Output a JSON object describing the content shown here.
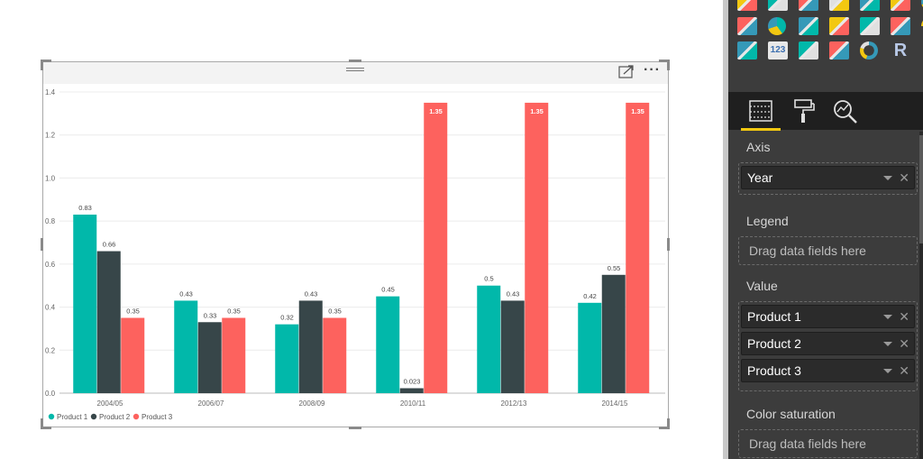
{
  "chart_data": {
    "type": "bar",
    "categories": [
      "2004/05",
      "2006/07",
      "2008/09",
      "2010/11",
      "2012/13",
      "2014/15"
    ],
    "series": [
      {
        "name": "Product 1",
        "values": [
          0.83,
          0.43,
          0.32,
          0.45,
          0.5,
          0.42
        ],
        "labels": [
          "0.83",
          "0.43",
          "0.32",
          "0.45",
          "0.5",
          "0.42"
        ],
        "color": "#01b8aa"
      },
      {
        "name": "Product 2",
        "values": [
          0.66,
          0.33,
          0.43,
          0.023,
          0.43,
          0.55
        ],
        "labels": [
          "0.66",
          "0.33",
          "0.43",
          "0.023",
          "0.43",
          "0.55"
        ],
        "color": "#374649"
      },
      {
        "name": "Product 3",
        "values": [
          0.35,
          0.35,
          0.35,
          1.35,
          1.35,
          1.35
        ],
        "labels": [
          "0.35",
          "0.35",
          "0.35",
          "1.35",
          "1.35",
          "1.35"
        ],
        "color": "#fd625e"
      }
    ],
    "yticks": [
      "0.0",
      "0.2",
      "0.4",
      "0.6",
      "0.8",
      "1.0",
      "1.2",
      "1.4"
    ],
    "ylim": [
      0,
      1.4
    ],
    "grid": true,
    "legend": "bottom-left",
    "title": "",
    "xlabel": "",
    "ylabel": ""
  },
  "visual": {
    "more_label": "···"
  },
  "pane": {
    "viz_icons": [
      "line-chart-icon",
      "area-chart-icon",
      "stacked-area-icon",
      "ribbon-chart-icon",
      "waterfall-icon",
      "scatter-icon",
      "pie-chart-icon",
      "treemap-icon",
      "map-globe-icon",
      "table-icon",
      "matrix-icon",
      "filled-map-icon",
      "funnel-icon",
      "gauge-icon",
      "multi-row-card-icon",
      "card-icon",
      "kpi-icon",
      "slicer-icon",
      "donut-icon",
      "r-visual-icon",
      "more-visuals-icon"
    ],
    "viz_text": {
      "card": "123",
      "r": "R",
      "more": "···"
    },
    "tab_colors": {
      "accent": "#f2c811"
    },
    "sections": {
      "axis": {
        "label": "Axis",
        "fields": [
          "Year"
        ]
      },
      "legend": {
        "label": "Legend",
        "placeholder": "Drag data fields here"
      },
      "value": {
        "label": "Value",
        "fields": [
          "Product 1",
          "Product 2",
          "Product 3"
        ]
      },
      "saturation": {
        "label": "Color saturation",
        "placeholder": "Drag data fields here"
      }
    },
    "remove_glyph": "✕"
  }
}
